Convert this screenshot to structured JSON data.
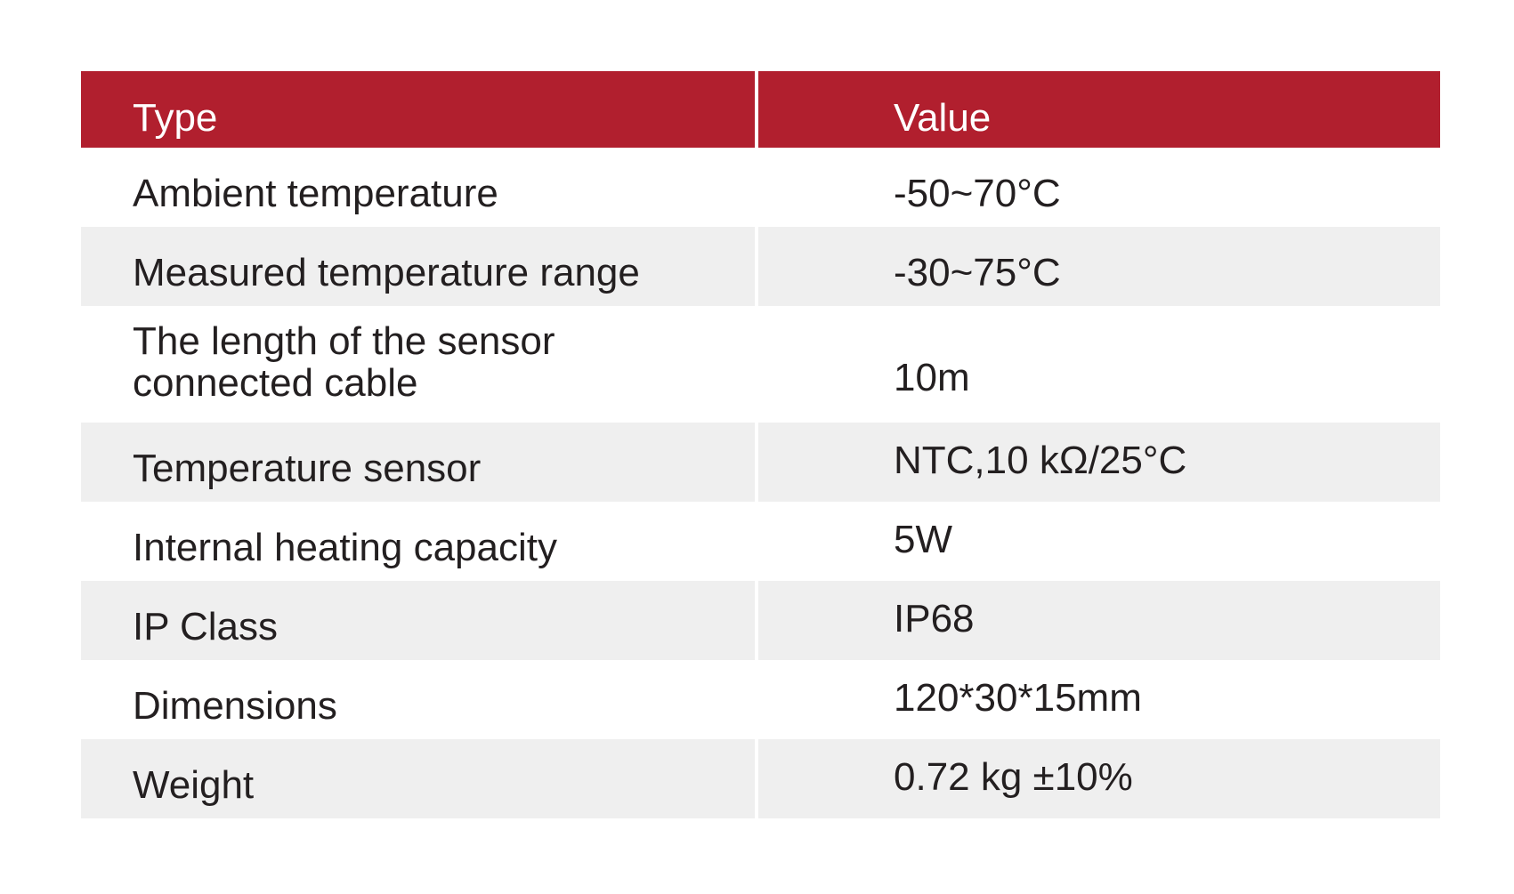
{
  "table": {
    "header": {
      "type_label": "Type",
      "value_label": "Value"
    },
    "rows": [
      {
        "type": "Ambient temperature",
        "value": "-50~70°C"
      },
      {
        "type": "Measured temperature range",
        "value": "-30~75°C"
      },
      {
        "type": "The length of the sensor\nconnected cable",
        "value": "10m"
      },
      {
        "type": "Temperature sensor",
        "value": "NTC,10 kΩ/25°C"
      },
      {
        "type": "Internal heating capacity",
        "value": "5W"
      },
      {
        "type": "IP Class",
        "value": "IP68"
      },
      {
        "type": "Dimensions",
        "value": "120*30*15mm"
      },
      {
        "type": "Weight",
        "value": "0.72 kg ±10%"
      }
    ]
  },
  "colors": {
    "header_background": "#b11f2e",
    "header_text": "#ffffff",
    "shaded_row": "#efefef",
    "body_text": "#231f20"
  }
}
